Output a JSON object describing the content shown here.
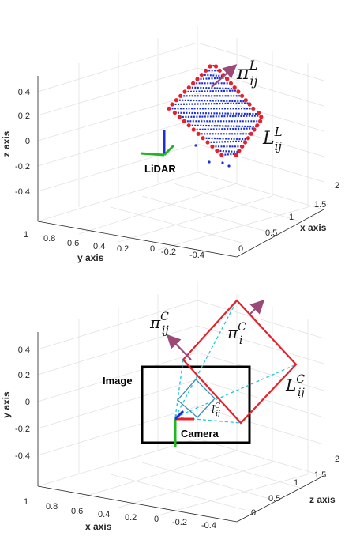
{
  "panels": [
    {
      "id": "lidar",
      "axes": {
        "vertical_label": "z axis",
        "right_label": "x axis",
        "left_label": "y axis",
        "vertical_ticks": [
          "0.4",
          "0.2",
          "0",
          "-0.2",
          "-0.4"
        ],
        "right_ticks": [
          "2",
          "1.5",
          "1",
          "0.5",
          "0"
        ],
        "left_ticks": [
          "1",
          "0.8",
          "0.6",
          "0.4",
          "0.2",
          "0",
          "-0.2",
          "-0.4"
        ]
      },
      "sensor_label": "LiDAR",
      "plane_symbol": {
        "base": "π",
        "sub": "ij",
        "sup": "L"
      },
      "line_symbol": {
        "base": "L",
        "sub": "ij",
        "sup": "L"
      }
    },
    {
      "id": "camera",
      "axes": {
        "vertical_label": "y axis",
        "right_label": "z axis",
        "left_label": "x axis",
        "vertical_ticks": [
          "0.4",
          "0.2",
          "0",
          "-0.2",
          "-0.4"
        ],
        "right_ticks": [
          "2",
          "1.5",
          "1",
          "0.5",
          "0"
        ],
        "left_ticks": [
          "1",
          "0.8",
          "0.6",
          "0.4",
          "0.2",
          "0",
          "-0.2",
          "-0.4"
        ]
      },
      "image_label": "Image",
      "sensor_label": "Camera",
      "plane_symbol_1": {
        "base": "π",
        "sub": "ij",
        "sup": "C"
      },
      "plane_symbol_2": {
        "base": "π",
        "sub": "i",
        "sup": "C"
      },
      "line_symbol": {
        "base": "L",
        "sub": "ij",
        "sup": "C"
      },
      "image_line_symbol": {
        "base": "l",
        "sub": "ij",
        "sup": "C"
      }
    }
  ],
  "colors": {
    "points": "#1a2fd6",
    "corners": "#e8202a",
    "board": "#e8202a",
    "image_frame": "#000000",
    "rays": "#22c5d8",
    "normal_arrow": "#9b4a78",
    "axis_x": "#e8202a",
    "axis_y": "#1fb81f",
    "axis_z": "#1a2fd6"
  }
}
